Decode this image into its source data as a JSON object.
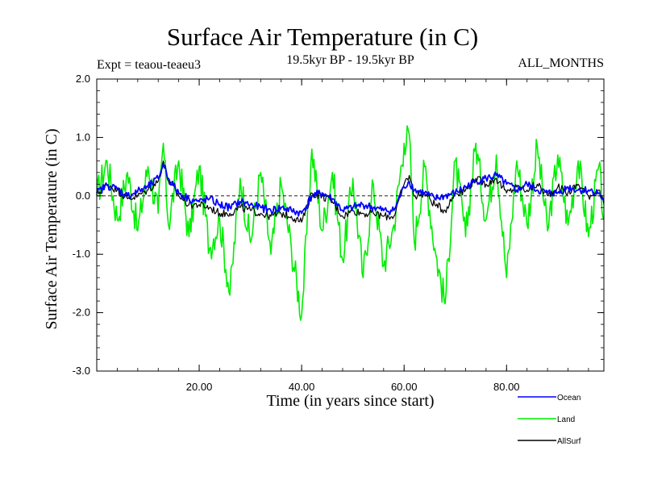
{
  "chart_data": {
    "type": "line",
    "title": "Surface Air Temperature (in C)",
    "subtitle": "19.5kyr BP - 19.5kyr BP",
    "left_label": "Expt = teaou-teaeu3",
    "right_label": "ALL_MONTHS",
    "xlabel": "Time (in years since start)",
    "ylabel": "Surface Air Temperature (in C)",
    "xlim": [
      0,
      99
    ],
    "ylim": [
      -3.0,
      2.0
    ],
    "xticks": [
      20,
      40,
      60,
      80
    ],
    "xtick_labels": [
      "20.00",
      "40.00",
      "60.00",
      "80.00"
    ],
    "yticks": [
      -3.0,
      -2.0,
      -1.0,
      0.0,
      1.0,
      2.0
    ],
    "ytick_labels": [
      "-3.0",
      "-2.0",
      "-1.0",
      "0.0",
      "1.0",
      "2.0"
    ],
    "reference_line": 0.0,
    "legend_placement": "below-right",
    "x": [
      0,
      2,
      4,
      6,
      8,
      10,
      12,
      13,
      14,
      16,
      18,
      20,
      22,
      24,
      26,
      28,
      30,
      32,
      34,
      36,
      38,
      40,
      42,
      44,
      46,
      48,
      50,
      52,
      54,
      56,
      58,
      60,
      61,
      62,
      64,
      66,
      68,
      70,
      72,
      74,
      76,
      78,
      80,
      82,
      84,
      86,
      88,
      90,
      92,
      94,
      96,
      98,
      99
    ],
    "series": [
      {
        "name": "Ocean",
        "color": "#0000ff",
        "values": [
          0.05,
          0.18,
          0.12,
          0.0,
          0.08,
          0.15,
          0.3,
          0.55,
          0.3,
          0.05,
          -0.05,
          -0.1,
          -0.05,
          -0.15,
          -0.2,
          -0.1,
          -0.15,
          -0.2,
          -0.25,
          -0.2,
          -0.25,
          -0.3,
          0.0,
          0.05,
          -0.05,
          -0.25,
          -0.2,
          -0.15,
          -0.2,
          -0.25,
          -0.25,
          0.15,
          0.25,
          0.1,
          0.05,
          -0.05,
          0.0,
          0.05,
          0.15,
          0.25,
          0.3,
          0.35,
          0.2,
          0.1,
          0.2,
          0.1,
          0.05,
          0.05,
          0.15,
          0.1,
          0.1,
          0.05,
          -0.1
        ]
      },
      {
        "name": "Land",
        "color": "#00ee00",
        "values": [
          0.0,
          0.6,
          -0.4,
          0.4,
          -0.6,
          0.5,
          -0.3,
          0.9,
          -0.5,
          0.6,
          -0.7,
          0.5,
          -0.9,
          -0.4,
          -1.7,
          0.3,
          -0.8,
          0.4,
          -1.0,
          0.2,
          -0.9,
          -2.05,
          0.8,
          -0.6,
          0.4,
          -1.1,
          0.3,
          -1.4,
          0.2,
          -1.2,
          -0.5,
          0.9,
          1.05,
          -0.8,
          0.5,
          -0.9,
          -1.85,
          0.6,
          -0.7,
          0.9,
          -0.4,
          0.7,
          -1.4,
          0.6,
          -0.5,
          0.85,
          -0.6,
          0.7,
          -0.5,
          0.6,
          -0.7,
          0.5,
          -0.4
        ]
      },
      {
        "name": "AllSurf",
        "color": "#000000",
        "values": [
          0.02,
          0.2,
          0.1,
          -0.05,
          0.0,
          0.1,
          0.25,
          0.6,
          0.25,
          0.0,
          -0.15,
          -0.15,
          -0.2,
          -0.3,
          -0.3,
          -0.2,
          -0.25,
          -0.3,
          -0.35,
          -0.3,
          -0.35,
          -0.45,
          0.05,
          0.0,
          -0.1,
          -0.35,
          -0.25,
          -0.3,
          -0.3,
          -0.35,
          -0.35,
          0.2,
          0.35,
          0.0,
          0.05,
          -0.15,
          -0.25,
          0.05,
          0.1,
          0.3,
          0.2,
          0.3,
          0.05,
          0.15,
          0.1,
          0.2,
          0.0,
          0.15,
          0.05,
          0.2,
          0.0,
          0.1,
          -0.15
        ]
      }
    ]
  }
}
